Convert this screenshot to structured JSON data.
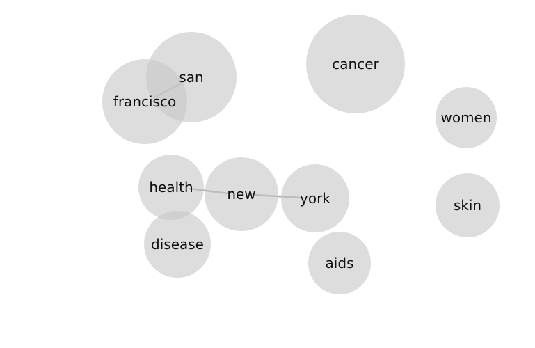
{
  "diagram": {
    "type": "word-cooccurrence-bubble-graph",
    "nodes": [
      {
        "id": "san",
        "label": "san"
      },
      {
        "id": "francisco",
        "label": "francisco"
      },
      {
        "id": "cancer",
        "label": "cancer"
      },
      {
        "id": "women",
        "label": "women"
      },
      {
        "id": "health",
        "label": "health"
      },
      {
        "id": "new",
        "label": "new"
      },
      {
        "id": "york",
        "label": "york"
      },
      {
        "id": "skin",
        "label": "skin"
      },
      {
        "id": "disease",
        "label": "disease"
      },
      {
        "id": "aids",
        "label": "aids"
      }
    ],
    "edges": [
      {
        "source": "francisco",
        "target": "san"
      },
      {
        "source": "health",
        "target": "new"
      },
      {
        "source": "new",
        "target": "york"
      }
    ]
  }
}
